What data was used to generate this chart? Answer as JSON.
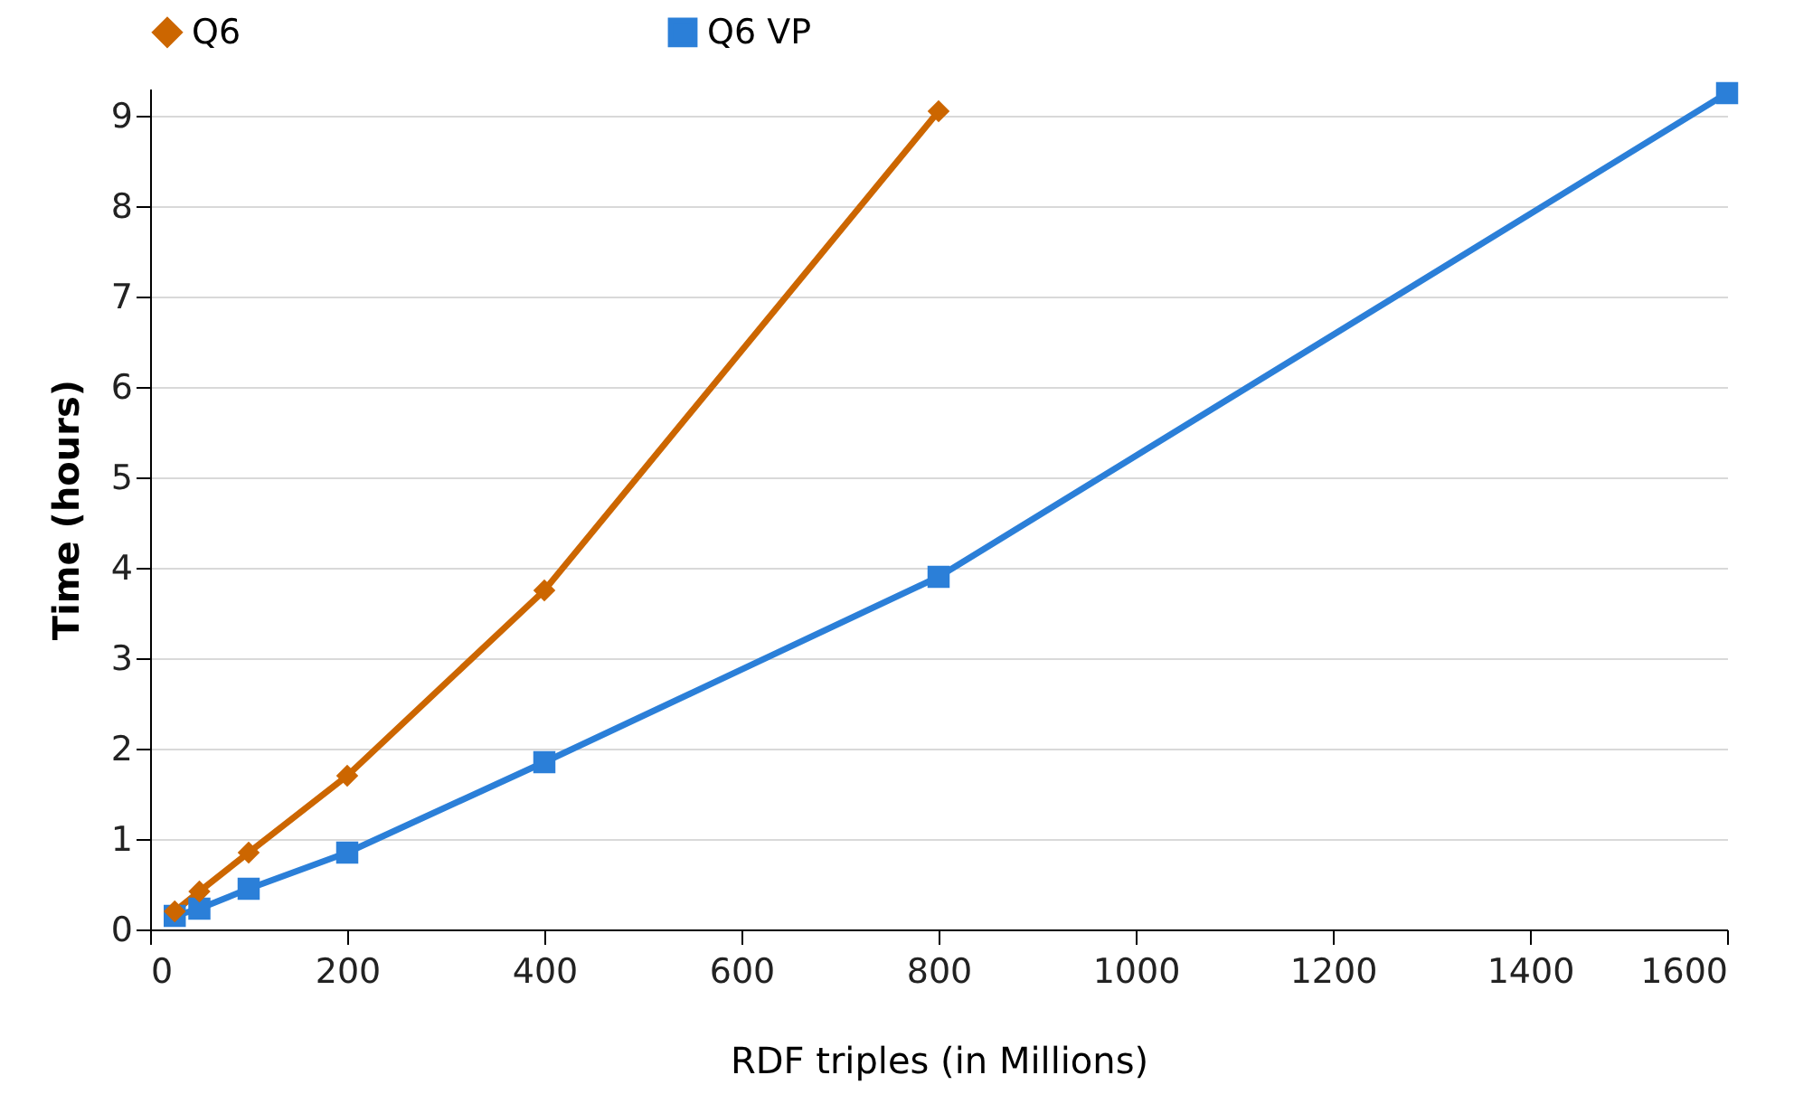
{
  "chart_data": {
    "type": "line",
    "xlabel": "RDF triples (in Millions)",
    "ylabel": "Time (hours)",
    "xlim": [
      0,
      1600
    ],
    "xticks": [
      0,
      200,
      400,
      600,
      800,
      1000,
      1200,
      1400,
      1600
    ],
    "ylim": [
      0,
      9.3
    ],
    "yticks": [
      0,
      1,
      2,
      3,
      4,
      5,
      6,
      7,
      8,
      9
    ],
    "grid": "y",
    "legend": "top",
    "series": [
      {
        "name": "Q6",
        "color": "#cc6600",
        "marker": "diamond",
        "x": [
          25,
          50,
          100,
          200,
          400,
          800
        ],
        "values": [
          0.2,
          0.42,
          0.85,
          1.7,
          3.75,
          9.05
        ]
      },
      {
        "name": "Q6 VP",
        "color": "#2b7fd8",
        "marker": "square",
        "x": [
          25,
          50,
          100,
          200,
          400,
          800,
          1600
        ],
        "values": [
          0.15,
          0.23,
          0.45,
          0.85,
          1.85,
          3.9,
          9.25
        ]
      }
    ]
  }
}
